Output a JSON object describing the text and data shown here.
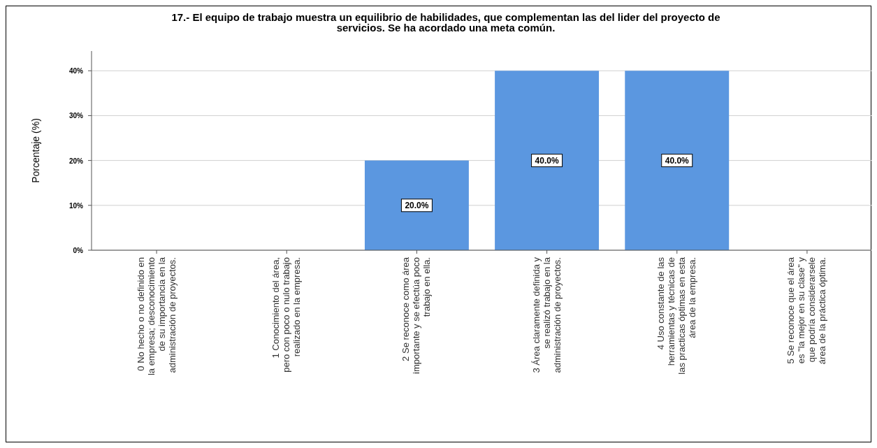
{
  "chart_data": {
    "type": "bar",
    "title": "17.- El equipo de trabajo muestra un equilibrio de habilidades, que complementan las del lider del proyecto de\nservicios. Se ha acordado una meta común.",
    "ylabel": "Porcentaje (%)",
    "categories": [
      "0  No hecho o no definido en\nla empresa; desconocimiento\nde su importancia en la\nadministración de proyectos.",
      "1  Conocimiento del área,\npero con poco o nulo trabajo\nrealizado en la empresa.",
      "2  Se reconoce como área\nimportante y se efectúa poco\ntrabajo en ella.",
      "3  Área claramente definida y\nse realizó trabajo en la\nadministración de proyectos.",
      "4  Uso constante de las\nherramientas y técnicas de\nlas practicas óptimas en esta\nárea de la empresa.",
      "5  Se reconoce que el área\nes \"la mejor en su clase\" y\nque podría considerarsele\nárea de la práctica óptima."
    ],
    "values": [
      0,
      0,
      20,
      40,
      40,
      0
    ],
    "value_labels": [
      null,
      null,
      "20.0%",
      "40.0%",
      "40.0%",
      null
    ],
    "color": "#5b97e0",
    "ylim": [
      0,
      44.4
    ],
    "yticks": [
      {
        "value": 0,
        "label": "0%"
      },
      {
        "value": 10,
        "label": "10%"
      },
      {
        "value": 20,
        "label": "20%"
      },
      {
        "value": 30,
        "label": "30%"
      },
      {
        "value": 40,
        "label": "40%"
      }
    ],
    "grid": "y"
  }
}
